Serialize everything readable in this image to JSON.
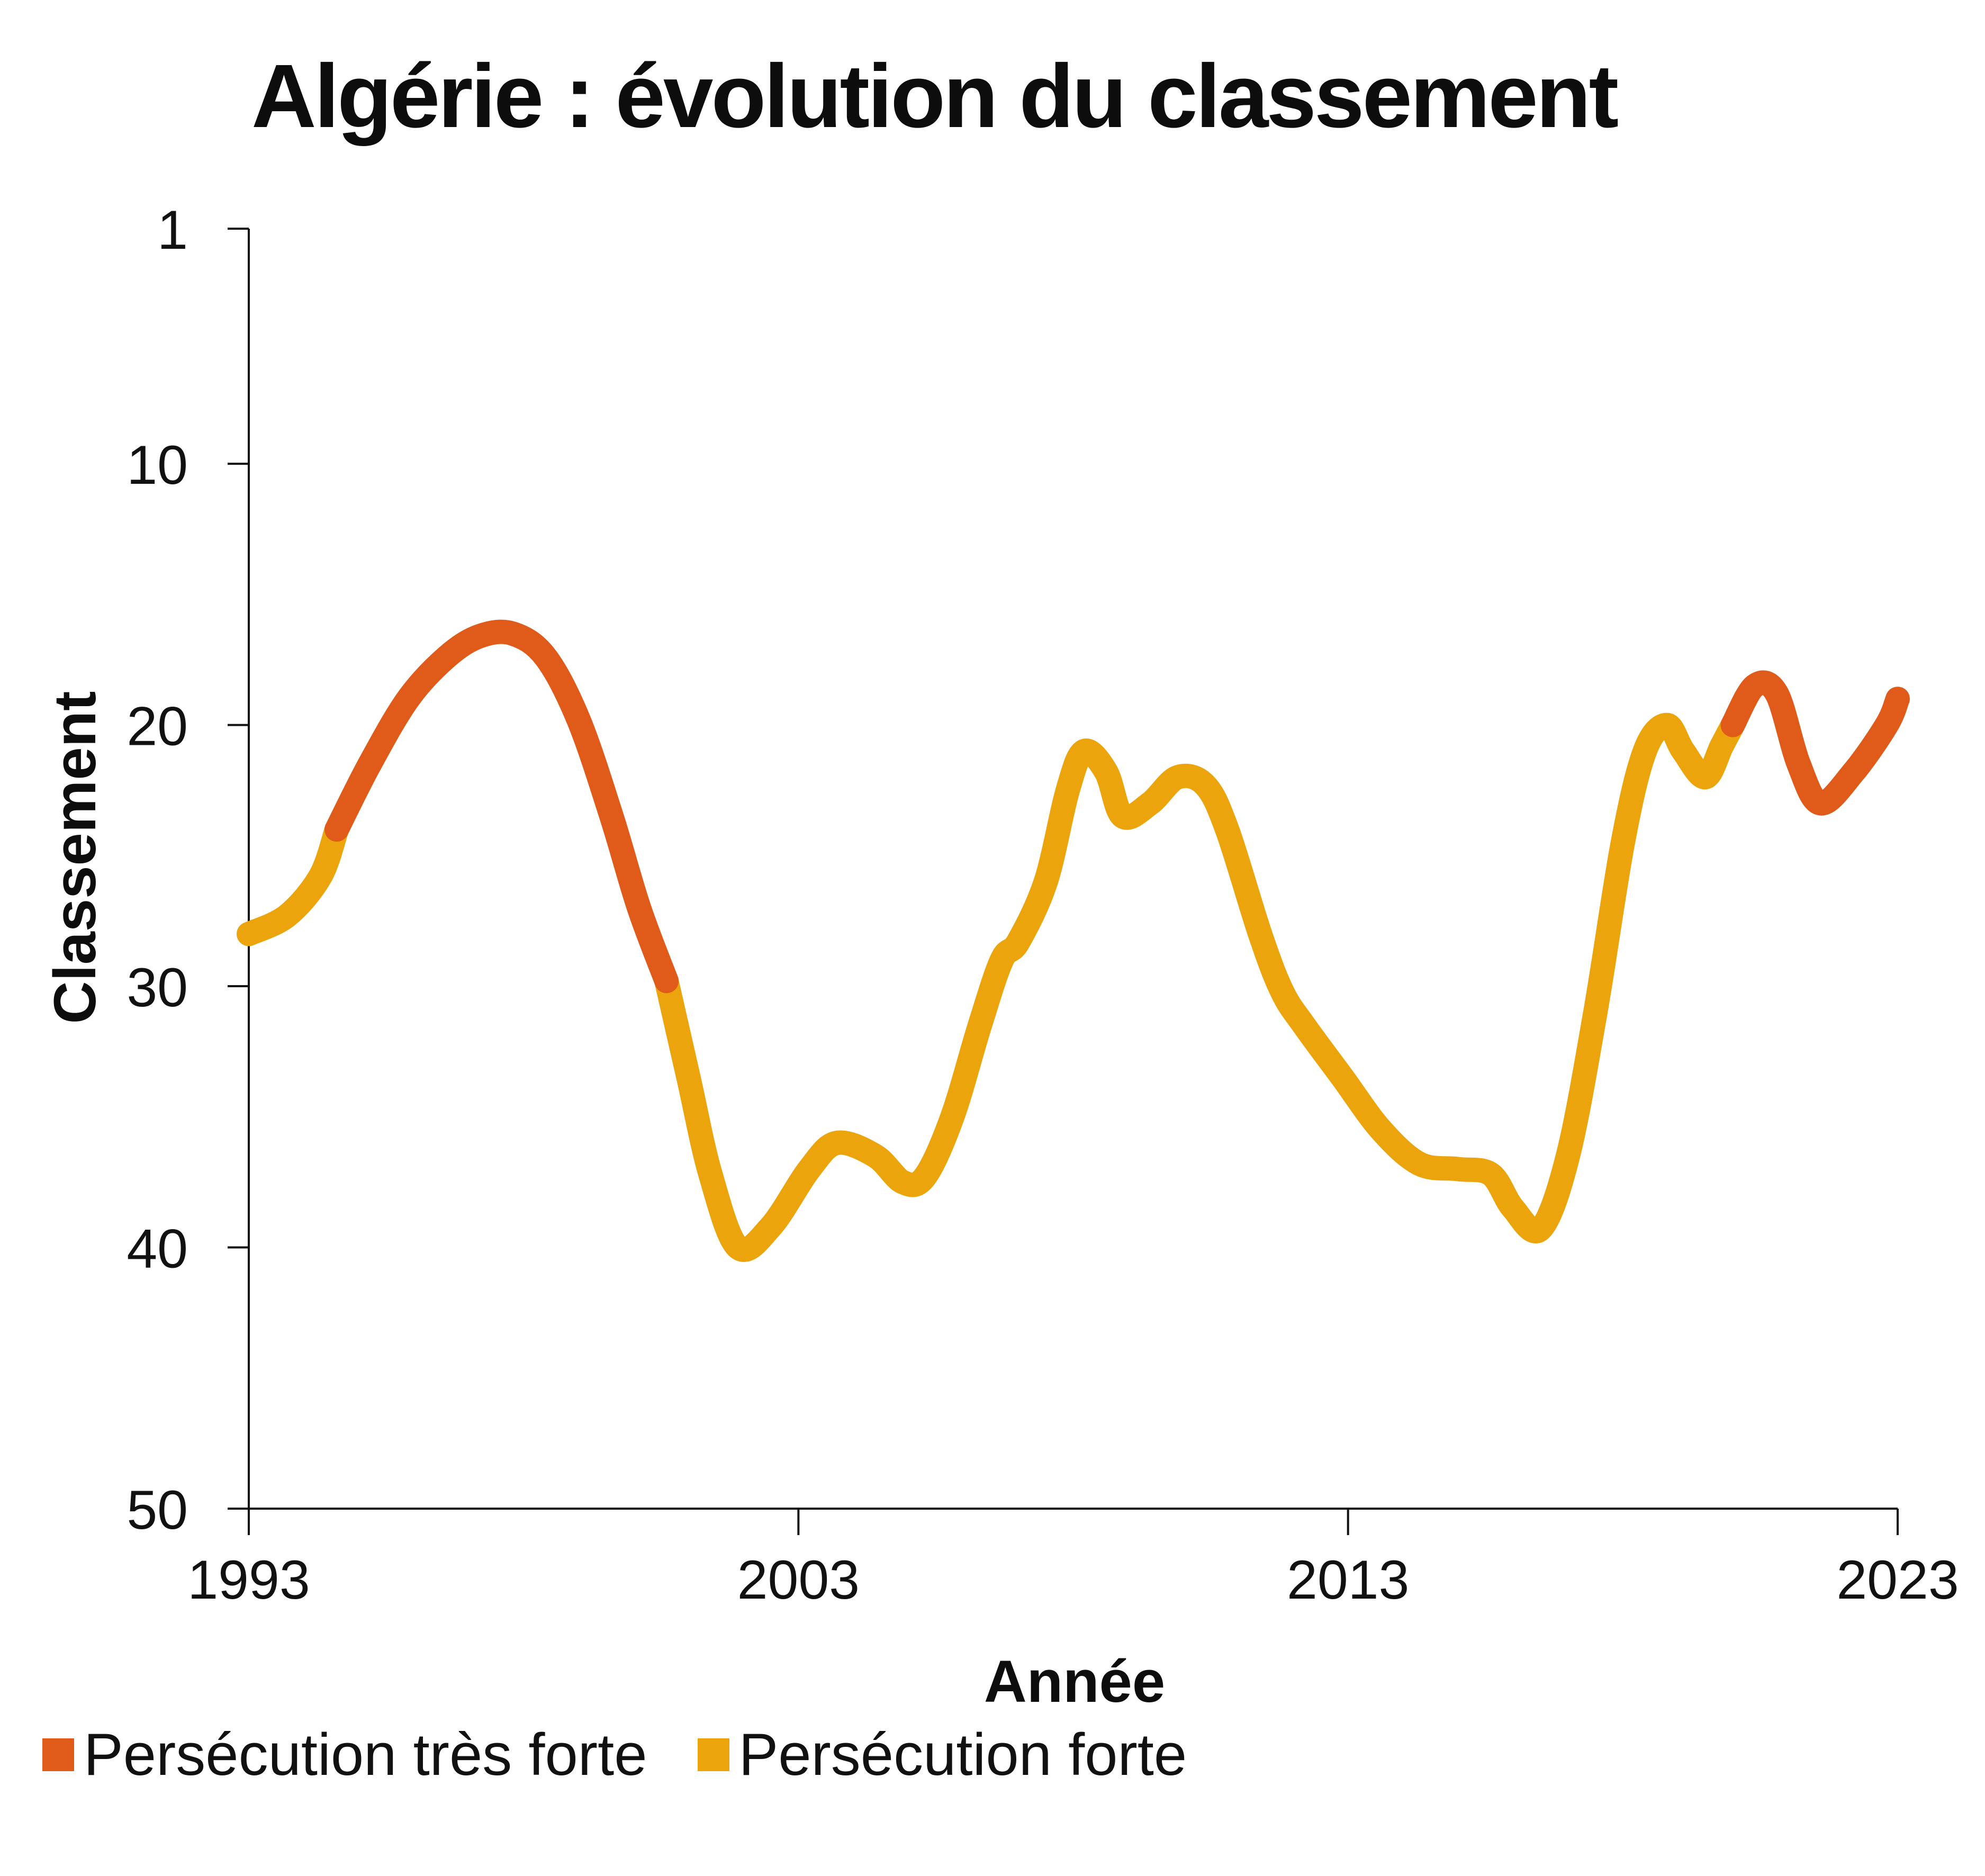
{
  "chart_data": {
    "type": "line",
    "title": "Algérie : évolution du classement",
    "xlabel": "Année",
    "ylabel": "Classement",
    "xlim": [
      1993,
      2023
    ],
    "ylim": [
      1,
      50
    ],
    "y_inverted": true,
    "x_ticks": [
      "1993",
      "2003",
      "2013",
      "2023"
    ],
    "y_ticks": [
      "1",
      "10",
      "20",
      "30",
      "40",
      "50"
    ],
    "grid": false,
    "legend_position": "bottom-left",
    "series": [
      {
        "name": "Persécution très forte",
        "color": "#e05a1a",
        "segments": [
          {
            "x": [
              1994.6,
              1995.2,
              1995.9,
              1996.6,
              1997.2,
              1997.8,
              1998.4,
              1999.0,
              1999.6,
              2000.1,
              2000.6
            ],
            "y": [
              24,
              21.5,
              19,
              17.4,
              16.6,
              16.5,
              17.4,
              19.8,
              23.5,
              27.0,
              29.8
            ]
          },
          {
            "x": [
              2020.0,
              2020.4,
              2020.8,
              2021.2,
              2021.6,
              2022.2,
              2022.8,
              2023.0
            ],
            "y": [
              20,
              18.5,
              18.8,
              21.5,
              23.0,
              21.8,
              20.0,
              19.0
            ]
          }
        ]
      },
      {
        "name": "Persécution forte",
        "color": "#eba40c",
        "segments": [
          {
            "x": [
              1993.0,
              1993.7,
              1994.3,
              1994.6
            ],
            "y": [
              28,
              27.3,
              25.8,
              24
            ]
          },
          {
            "x": [
              2000.6,
              2001.0,
              2001.4,
              2001.9,
              2002.5,
              2003.2,
              2003.7,
              2004.4,
              2004.9,
              2005.3,
              2005.8,
              2006.3,
              2006.7,
              2007.0,
              2007.5,
              2007.9,
              2008.2,
              2008.6,
              2008.9,
              2009.4,
              2009.9,
              2010.4,
              2010.8,
              2011.4,
              2011.8,
              2012.2,
              2012.9,
              2013.6,
              2014.3,
              2015.0,
              2015.6,
              2016.0,
              2016.5,
              2017.0,
              2017.5,
              2018.0,
              2018.4,
              2018.8,
              2019.1,
              2019.5,
              2019.8,
              2020.0
            ],
            "y": [
              29.8,
              33.5,
              37.2,
              40.0,
              39.2,
              37.0,
              36.0,
              36.5,
              37.5,
              37.3,
              35.0,
              31.5,
              29.0,
              28.3,
              26.0,
              22.5,
              21.0,
              21.8,
              23.5,
              23.0,
              22.0,
              22.3,
              24.0,
              28.0,
              30.2,
              31.5,
              33.5,
              35.5,
              36.8,
              37.0,
              37.2,
              38.5,
              39.3,
              36.5,
              31.0,
              24.5,
              21.0,
              20.0,
              21.0,
              22.0,
              20.8,
              20.0
            ]
          }
        ]
      }
    ]
  }
}
